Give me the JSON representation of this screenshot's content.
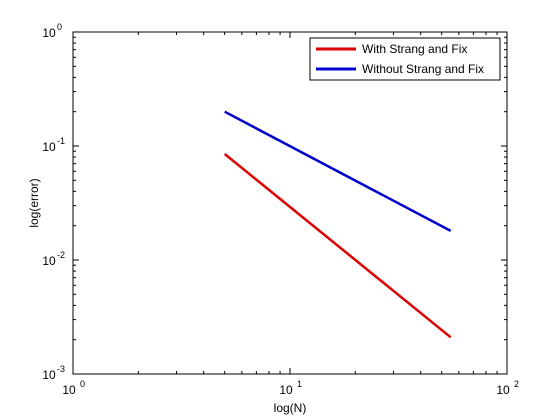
{
  "chart_data": {
    "type": "line",
    "title": "",
    "xlabel": "log(N)",
    "ylabel": "log(error)",
    "xscale": "log",
    "yscale": "log",
    "xlim": [
      1,
      100
    ],
    "ylim": [
      0.001,
      1
    ],
    "x_ticks": [
      {
        "value": 1,
        "base": "10",
        "exp": "0"
      },
      {
        "value": 10,
        "base": "10",
        "exp": "1"
      },
      {
        "value": 100,
        "base": "10",
        "exp": "2"
      }
    ],
    "y_ticks": [
      {
        "value": 0.001,
        "base": "10",
        "exp": "-3"
      },
      {
        "value": 0.01,
        "base": "10",
        "exp": "-2"
      },
      {
        "value": 0.1,
        "base": "10",
        "exp": "-1"
      },
      {
        "value": 1,
        "base": "10",
        "exp": "0"
      }
    ],
    "grid": false,
    "legend_position": "top-right",
    "series": [
      {
        "name": "With Strang and Fix",
        "color": "#dd0000",
        "x": [
          5,
          55
        ],
        "y": [
          0.085,
          0.0021
        ]
      },
      {
        "name": "Without Strang and Fix",
        "color": "#0000cc",
        "x": [
          5,
          55
        ],
        "y": [
          0.2,
          0.018
        ]
      }
    ]
  }
}
